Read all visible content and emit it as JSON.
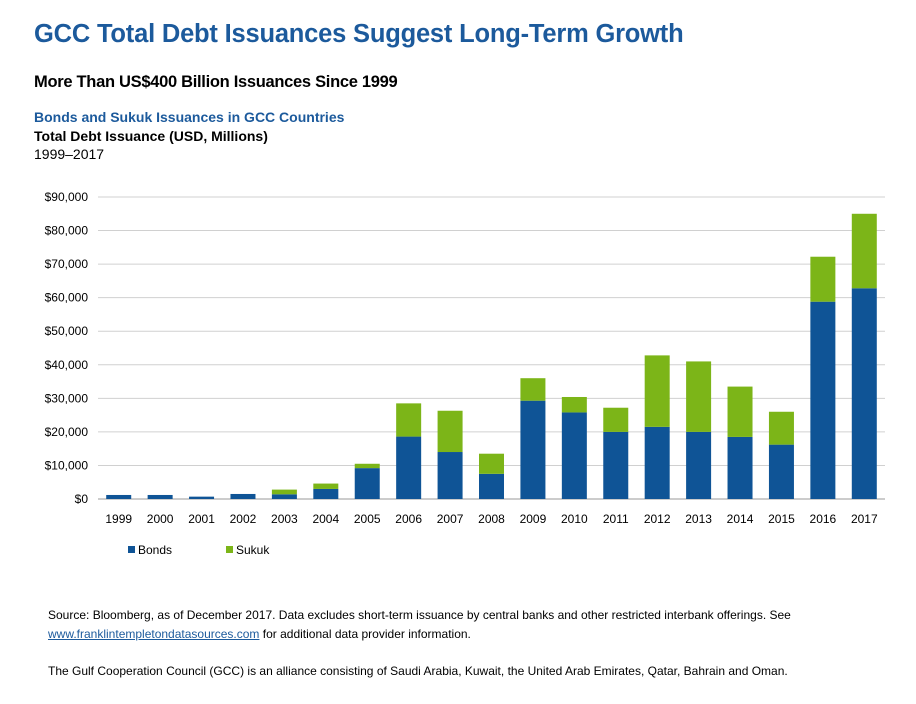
{
  "header": {
    "title": "GCC Total Debt Issuances Suggest Long-Term Growth",
    "subtitle": "More Than US$400 Billion Issuances Since 1999"
  },
  "chart_heading": "Bonds and Sukuk Issuances in GCC Countries",
  "chart_data": {
    "type": "bar",
    "stacked": true,
    "title": "Total Debt Issuance (USD, Millions)",
    "period": "1999–2017",
    "categories": [
      "1999",
      "2000",
      "2001",
      "2002",
      "2003",
      "2004",
      "2005",
      "2006",
      "2007",
      "2008",
      "2009",
      "2010",
      "2011",
      "2012",
      "2013",
      "2014",
      "2015",
      "2016",
      "2017"
    ],
    "series": [
      {
        "name": "Bonds",
        "color": "#0f5496",
        "values": [
          1200,
          1200,
          700,
          1500,
          1400,
          3000,
          9200,
          18600,
          14000,
          7500,
          29300,
          25800,
          20000,
          21500,
          20000,
          18500,
          16200,
          58800,
          62800
        ]
      },
      {
        "name": "Sukuk",
        "color": "#7cb518",
        "values": [
          0,
          0,
          0,
          0,
          1400,
          1600,
          1300,
          9900,
          12300,
          6000,
          6700,
          4600,
          7200,
          21300,
          21000,
          15000,
          9800,
          13400,
          22200
        ]
      }
    ],
    "ylim": [
      0,
      90000
    ],
    "yticks": [
      "$0",
      "$10,000",
      "$20,000",
      "$30,000",
      "$40,000",
      "$50,000",
      "$60,000",
      "$70,000",
      "$80,000",
      "$90,000"
    ],
    "ytick_values": [
      0,
      10000,
      20000,
      30000,
      40000,
      50000,
      60000,
      70000,
      80000,
      90000
    ],
    "grid": true,
    "legend": "bottom-left"
  },
  "footer": {
    "source_text": "Source: Bloomberg, as of December 2017. Data  excludes short-term issuance by central banks and other restricted interbank offerings. See ",
    "source_link": "www.franklintempletondatasources.com",
    "source_after": " for additional data provider information.",
    "note": "The Gulf Cooperation Council (GCC)  is an alliance consisting of Saudi Arabia, Kuwait,  the United Arab Emirates, Qatar,  Bahrain and Oman."
  }
}
